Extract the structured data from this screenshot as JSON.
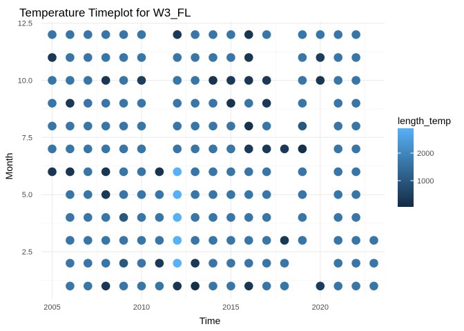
{
  "chart_data": {
    "type": "scatter",
    "title": "Temperature Timeplot for W3_FL",
    "xlabel": "Time",
    "ylabel": "Month",
    "xlim": [
      2004.4,
      2023.6
    ],
    "ylim": [
      0.45,
      12.55
    ],
    "x_ticks": [
      2005,
      2010,
      2015,
      2020
    ],
    "x_tick_labels": [
      "2005",
      "2010",
      "2015",
      "2020"
    ],
    "y_ticks": [
      2.5,
      5.0,
      7.5,
      10.0,
      12.5
    ],
    "y_tick_labels": [
      "2.5",
      "5.0",
      "7.5",
      "10.0",
      "12.5"
    ],
    "grid": true,
    "legend": {
      "title": "length_temp",
      "position": "right",
      "range": [
        50,
        2900
      ],
      "ticks": [
        1000,
        2000
      ],
      "tick_labels": [
        "1000",
        "2000"
      ],
      "color_low": "#132B43",
      "color_high": "#56B1F7"
    },
    "points": [
      {
        "x": 2005,
        "y": 12,
        "v": 1650
      },
      {
        "x": 2006,
        "y": 12,
        "v": 1650
      },
      {
        "x": 2007,
        "y": 12,
        "v": 1650
      },
      {
        "x": 2008,
        "y": 12,
        "v": 1650
      },
      {
        "x": 2009,
        "y": 12,
        "v": 1650
      },
      {
        "x": 2010,
        "y": 12,
        "v": 1650
      },
      {
        "x": 2012,
        "y": 12,
        "v": 350
      },
      {
        "x": 2013,
        "y": 12,
        "v": 1650
      },
      {
        "x": 2014,
        "y": 12,
        "v": 1650
      },
      {
        "x": 2015,
        "y": 12,
        "v": 1650
      },
      {
        "x": 2016,
        "y": 12,
        "v": 300
      },
      {
        "x": 2017,
        "y": 12,
        "v": 1650
      },
      {
        "x": 2019,
        "y": 12,
        "v": 1650
      },
      {
        "x": 2020,
        "y": 12,
        "v": 1650
      },
      {
        "x": 2021,
        "y": 12,
        "v": 1650
      },
      {
        "x": 2022,
        "y": 12,
        "v": 1650
      },
      {
        "x": 2005,
        "y": 11,
        "v": 350
      },
      {
        "x": 2006,
        "y": 11,
        "v": 1650
      },
      {
        "x": 2007,
        "y": 11,
        "v": 1650
      },
      {
        "x": 2008,
        "y": 11,
        "v": 1650
      },
      {
        "x": 2009,
        "y": 11,
        "v": 1650
      },
      {
        "x": 2010,
        "y": 11,
        "v": 1650
      },
      {
        "x": 2012,
        "y": 11,
        "v": 1650
      },
      {
        "x": 2013,
        "y": 11,
        "v": 1650
      },
      {
        "x": 2014,
        "y": 11,
        "v": 1650
      },
      {
        "x": 2015,
        "y": 11,
        "v": 1650
      },
      {
        "x": 2016,
        "y": 11,
        "v": 300
      },
      {
        "x": 2019,
        "y": 11,
        "v": 1650
      },
      {
        "x": 2020,
        "y": 11,
        "v": 450
      },
      {
        "x": 2021,
        "y": 11,
        "v": 1650
      },
      {
        "x": 2022,
        "y": 11,
        "v": 1650
      },
      {
        "x": 2005,
        "y": 10,
        "v": 1650
      },
      {
        "x": 2006,
        "y": 10,
        "v": 1650
      },
      {
        "x": 2007,
        "y": 10,
        "v": 1650
      },
      {
        "x": 2008,
        "y": 10,
        "v": 300
      },
      {
        "x": 2009,
        "y": 10,
        "v": 1650
      },
      {
        "x": 2010,
        "y": 10,
        "v": 450
      },
      {
        "x": 2012,
        "y": 10,
        "v": 1650
      },
      {
        "x": 2013,
        "y": 10,
        "v": 1650
      },
      {
        "x": 2014,
        "y": 10,
        "v": 250
      },
      {
        "x": 2015,
        "y": 10,
        "v": 350
      },
      {
        "x": 2016,
        "y": 10,
        "v": 300
      },
      {
        "x": 2017,
        "y": 10,
        "v": 350
      },
      {
        "x": 2019,
        "y": 10,
        "v": 1650
      },
      {
        "x": 2020,
        "y": 10,
        "v": 300
      },
      {
        "x": 2021,
        "y": 10,
        "v": 1650
      },
      {
        "x": 2022,
        "y": 10,
        "v": 1650
      },
      {
        "x": 2005,
        "y": 9,
        "v": 1650
      },
      {
        "x": 2006,
        "y": 9,
        "v": 350
      },
      {
        "x": 2007,
        "y": 9,
        "v": 1650
      },
      {
        "x": 2008,
        "y": 9,
        "v": 1650
      },
      {
        "x": 2009,
        "y": 9,
        "v": 1650
      },
      {
        "x": 2010,
        "y": 9,
        "v": 1650
      },
      {
        "x": 2012,
        "y": 9,
        "v": 1650
      },
      {
        "x": 2013,
        "y": 9,
        "v": 1650
      },
      {
        "x": 2014,
        "y": 9,
        "v": 1650
      },
      {
        "x": 2015,
        "y": 9,
        "v": 250
      },
      {
        "x": 2016,
        "y": 9,
        "v": 1650
      },
      {
        "x": 2017,
        "y": 9,
        "v": 350
      },
      {
        "x": 2019,
        "y": 9,
        "v": 1650
      },
      {
        "x": 2021,
        "y": 9,
        "v": 1650
      },
      {
        "x": 2022,
        "y": 9,
        "v": 1650
      },
      {
        "x": 2005,
        "y": 8,
        "v": 1650
      },
      {
        "x": 2006,
        "y": 8,
        "v": 1650
      },
      {
        "x": 2007,
        "y": 8,
        "v": 1650
      },
      {
        "x": 2008,
        "y": 8,
        "v": 1650
      },
      {
        "x": 2009,
        "y": 8,
        "v": 1650
      },
      {
        "x": 2010,
        "y": 8,
        "v": 1650
      },
      {
        "x": 2012,
        "y": 8,
        "v": 1650
      },
      {
        "x": 2013,
        "y": 8,
        "v": 1650
      },
      {
        "x": 2014,
        "y": 8,
        "v": 1650
      },
      {
        "x": 2015,
        "y": 8,
        "v": 1650
      },
      {
        "x": 2016,
        "y": 8,
        "v": 200
      },
      {
        "x": 2017,
        "y": 8,
        "v": 1650
      },
      {
        "x": 2019,
        "y": 8,
        "v": 1000
      },
      {
        "x": 2021,
        "y": 8,
        "v": 1650
      },
      {
        "x": 2022,
        "y": 8,
        "v": 1650
      },
      {
        "x": 2005,
        "y": 7,
        "v": 1650
      },
      {
        "x": 2006,
        "y": 7,
        "v": 1650
      },
      {
        "x": 2007,
        "y": 7,
        "v": 1650
      },
      {
        "x": 2008,
        "y": 7,
        "v": 1650
      },
      {
        "x": 2009,
        "y": 7,
        "v": 1650
      },
      {
        "x": 2010,
        "y": 7,
        "v": 1650
      },
      {
        "x": 2012,
        "y": 7,
        "v": 1650
      },
      {
        "x": 2013,
        "y": 7,
        "v": 1650
      },
      {
        "x": 2014,
        "y": 7,
        "v": 1650
      },
      {
        "x": 2015,
        "y": 7,
        "v": 1650
      },
      {
        "x": 2016,
        "y": 7,
        "v": 350
      },
      {
        "x": 2017,
        "y": 7,
        "v": 350
      },
      {
        "x": 2018,
        "y": 7,
        "v": 350
      },
      {
        "x": 2019,
        "y": 7,
        "v": 150
      },
      {
        "x": 2021,
        "y": 7,
        "v": 1650
      },
      {
        "x": 2022,
        "y": 7,
        "v": 1650
      },
      {
        "x": 2005,
        "y": 6,
        "v": 300
      },
      {
        "x": 2006,
        "y": 6,
        "v": 300
      },
      {
        "x": 2007,
        "y": 6,
        "v": 1650
      },
      {
        "x": 2008,
        "y": 6,
        "v": 300
      },
      {
        "x": 2009,
        "y": 6,
        "v": 1650
      },
      {
        "x": 2010,
        "y": 6,
        "v": 1650
      },
      {
        "x": 2011,
        "y": 6,
        "v": 250
      },
      {
        "x": 2012,
        "y": 6,
        "v": 2900
      },
      {
        "x": 2013,
        "y": 6,
        "v": 1650
      },
      {
        "x": 2014,
        "y": 6,
        "v": 1650
      },
      {
        "x": 2015,
        "y": 6,
        "v": 1650
      },
      {
        "x": 2016,
        "y": 6,
        "v": 1650
      },
      {
        "x": 2017,
        "y": 6,
        "v": 1650
      },
      {
        "x": 2019,
        "y": 6,
        "v": 1650
      },
      {
        "x": 2021,
        "y": 6,
        "v": 1650
      },
      {
        "x": 2022,
        "y": 6,
        "v": 1650
      },
      {
        "x": 2006,
        "y": 5,
        "v": 1650
      },
      {
        "x": 2007,
        "y": 5,
        "v": 1650
      },
      {
        "x": 2008,
        "y": 5,
        "v": 350
      },
      {
        "x": 2009,
        "y": 5,
        "v": 1650
      },
      {
        "x": 2010,
        "y": 5,
        "v": 1650
      },
      {
        "x": 2011,
        "y": 5,
        "v": 1650
      },
      {
        "x": 2012,
        "y": 5,
        "v": 2900
      },
      {
        "x": 2013,
        "y": 5,
        "v": 1650
      },
      {
        "x": 2014,
        "y": 5,
        "v": 1650
      },
      {
        "x": 2015,
        "y": 5,
        "v": 1650
      },
      {
        "x": 2016,
        "y": 5,
        "v": 1650
      },
      {
        "x": 2017,
        "y": 5,
        "v": 1650
      },
      {
        "x": 2019,
        "y": 5,
        "v": 1650
      },
      {
        "x": 2021,
        "y": 5,
        "v": 1650
      },
      {
        "x": 2022,
        "y": 5,
        "v": 1650
      },
      {
        "x": 2006,
        "y": 4,
        "v": 1650
      },
      {
        "x": 2007,
        "y": 4,
        "v": 1650
      },
      {
        "x": 2008,
        "y": 4,
        "v": 1650
      },
      {
        "x": 2009,
        "y": 4,
        "v": 1000
      },
      {
        "x": 2010,
        "y": 4,
        "v": 1650
      },
      {
        "x": 2011,
        "y": 4,
        "v": 1650
      },
      {
        "x": 2012,
        "y": 4,
        "v": 2900
      },
      {
        "x": 2013,
        "y": 4,
        "v": 1650
      },
      {
        "x": 2014,
        "y": 4,
        "v": 1650
      },
      {
        "x": 2015,
        "y": 4,
        "v": 1650
      },
      {
        "x": 2016,
        "y": 4,
        "v": 1650
      },
      {
        "x": 2017,
        "y": 4,
        "v": 1650
      },
      {
        "x": 2019,
        "y": 4,
        "v": 1650
      },
      {
        "x": 2021,
        "y": 4,
        "v": 1650
      },
      {
        "x": 2022,
        "y": 4,
        "v": 1650
      },
      {
        "x": 2006,
        "y": 3,
        "v": 1650
      },
      {
        "x": 2007,
        "y": 3,
        "v": 1650
      },
      {
        "x": 2008,
        "y": 3,
        "v": 1650
      },
      {
        "x": 2009,
        "y": 3,
        "v": 1650
      },
      {
        "x": 2010,
        "y": 3,
        "v": 1650
      },
      {
        "x": 2011,
        "y": 3,
        "v": 1650
      },
      {
        "x": 2012,
        "y": 3,
        "v": 2900
      },
      {
        "x": 2013,
        "y": 3,
        "v": 1650
      },
      {
        "x": 2014,
        "y": 3,
        "v": 1650
      },
      {
        "x": 2015,
        "y": 3,
        "v": 1650
      },
      {
        "x": 2016,
        "y": 3,
        "v": 1650
      },
      {
        "x": 2017,
        "y": 3,
        "v": 1650
      },
      {
        "x": 2018,
        "y": 3,
        "v": 350
      },
      {
        "x": 2019,
        "y": 3,
        "v": 1650
      },
      {
        "x": 2021,
        "y": 3,
        "v": 1650
      },
      {
        "x": 2022,
        "y": 3,
        "v": 1650
      },
      {
        "x": 2023,
        "y": 3,
        "v": 1650
      },
      {
        "x": 2006,
        "y": 2,
        "v": 1650
      },
      {
        "x": 2007,
        "y": 2,
        "v": 1650
      },
      {
        "x": 2008,
        "y": 2,
        "v": 1650
      },
      {
        "x": 2009,
        "y": 2,
        "v": 1000
      },
      {
        "x": 2010,
        "y": 2,
        "v": 1650
      },
      {
        "x": 2011,
        "y": 2,
        "v": 350
      },
      {
        "x": 2012,
        "y": 2,
        "v": 2900
      },
      {
        "x": 2013,
        "y": 2,
        "v": 350
      },
      {
        "x": 2014,
        "y": 2,
        "v": 1650
      },
      {
        "x": 2015,
        "y": 2,
        "v": 1650
      },
      {
        "x": 2016,
        "y": 2,
        "v": 1650
      },
      {
        "x": 2017,
        "y": 2,
        "v": 1650
      },
      {
        "x": 2018,
        "y": 2,
        "v": 1650
      },
      {
        "x": 2021,
        "y": 2,
        "v": 1650
      },
      {
        "x": 2022,
        "y": 2,
        "v": 1650
      },
      {
        "x": 2023,
        "y": 2,
        "v": 1650
      },
      {
        "x": 2006,
        "y": 1,
        "v": 1650
      },
      {
        "x": 2007,
        "y": 1,
        "v": 1650
      },
      {
        "x": 2008,
        "y": 1,
        "v": 300
      },
      {
        "x": 2009,
        "y": 1,
        "v": 1650
      },
      {
        "x": 2010,
        "y": 1,
        "v": 1650
      },
      {
        "x": 2011,
        "y": 1,
        "v": 1650
      },
      {
        "x": 2012,
        "y": 1,
        "v": 300
      },
      {
        "x": 2013,
        "y": 1,
        "v": 150
      },
      {
        "x": 2014,
        "y": 1,
        "v": 1650
      },
      {
        "x": 2015,
        "y": 1,
        "v": 1650
      },
      {
        "x": 2016,
        "y": 1,
        "v": 300
      },
      {
        "x": 2017,
        "y": 1,
        "v": 1650
      },
      {
        "x": 2018,
        "y": 1,
        "v": 1650
      },
      {
        "x": 2020,
        "y": 1,
        "v": 450
      },
      {
        "x": 2021,
        "y": 1,
        "v": 1650
      },
      {
        "x": 2022,
        "y": 1,
        "v": 1650
      },
      {
        "x": 2023,
        "y": 1,
        "v": 1650
      }
    ]
  }
}
